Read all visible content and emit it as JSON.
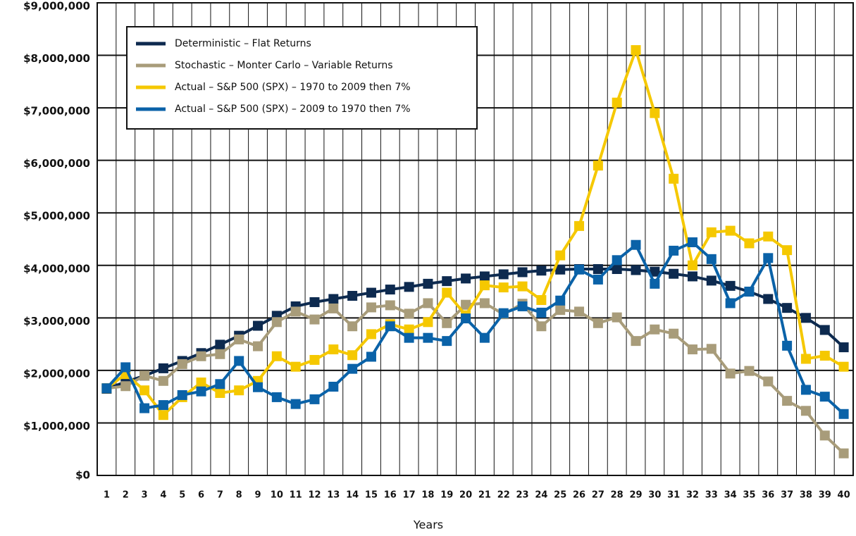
{
  "chart_data": {
    "type": "line",
    "x_label": "Years",
    "categories": [
      "1",
      "2",
      "3",
      "4",
      "5",
      "6",
      "7",
      "8",
      "9",
      "10",
      "11",
      "12",
      "13",
      "14",
      "15",
      "16",
      "17",
      "18",
      "19",
      "20",
      "21",
      "22",
      "23",
      "24",
      "25",
      "26",
      "27",
      "28",
      "29",
      "30",
      "31",
      "32",
      "33",
      "34",
      "35",
      "36",
      "37",
      "38",
      "39",
      "40"
    ],
    "series": [
      {
        "name": "Deterministic – Flat Returns",
        "color": "#0d2a4f",
        "values": [
          1650000,
          1780000,
          1900000,
          2040000,
          2180000,
          2330000,
          2490000,
          2660000,
          2850000,
          3040000,
          3220000,
          3300000,
          3360000,
          3420000,
          3480000,
          3540000,
          3590000,
          3650000,
          3700000,
          3750000,
          3790000,
          3830000,
          3870000,
          3900000,
          3920000,
          3930000,
          3930000,
          3930000,
          3910000,
          3880000,
          3840000,
          3790000,
          3710000,
          3610000,
          3500000,
          3360000,
          3190000,
          3000000,
          2770000,
          2440000
        ]
      },
      {
        "name": "Stochastic – Monter Carlo – Variable Returns",
        "color": "#a89c7a",
        "values": [
          1660000,
          1700000,
          1900000,
          1800000,
          2120000,
          2270000,
          2310000,
          2590000,
          2460000,
          2920000,
          3120000,
          2970000,
          3180000,
          2840000,
          3200000,
          3240000,
          3080000,
          3280000,
          2900000,
          3250000,
          3280000,
          3070000,
          3270000,
          2840000,
          3150000,
          3120000,
          2900000,
          3010000,
          2560000,
          2780000,
          2700000,
          2400000,
          2410000,
          1940000,
          1990000,
          1790000,
          1420000,
          1230000,
          760000,
          420000
        ]
      },
      {
        "name": "Actual – S&P 500 (SPX) – 1970 to 2009 then 7%",
        "color": "#f5c800",
        "values": [
          1660000,
          1930000,
          1620000,
          1150000,
          1490000,
          1770000,
          1570000,
          1620000,
          1800000,
          2270000,
          2070000,
          2200000,
          2400000,
          2290000,
          2690000,
          2880000,
          2780000,
          2920000,
          3480000,
          3050000,
          3620000,
          3580000,
          3600000,
          3340000,
          4190000,
          4750000,
          5900000,
          7100000,
          8100000,
          6900000,
          5650000,
          4000000,
          4630000,
          4660000,
          4420000,
          4550000,
          4290000,
          2220000,
          2280000,
          2070000
        ]
      },
      {
        "name": "Actual – S&P 500 (SPX) – 2009 to 1970 then 7%",
        "color": "#0a62a8",
        "values": [
          1660000,
          2060000,
          1280000,
          1340000,
          1530000,
          1600000,
          1740000,
          2180000,
          1680000,
          1490000,
          1360000,
          1450000,
          1690000,
          2030000,
          2260000,
          2840000,
          2620000,
          2620000,
          2560000,
          2990000,
          2620000,
          3090000,
          3220000,
          3100000,
          3330000,
          3920000,
          3730000,
          4100000,
          4390000,
          3650000,
          4280000,
          4440000,
          4120000,
          3280000,
          3500000,
          4140000,
          2470000,
          1630000,
          1500000,
          1170000
        ]
      }
    ],
    "ylim": [
      0,
      9000000
    ],
    "yticks": [
      {
        "value": 0,
        "label": "$0"
      },
      {
        "value": 1000000,
        "label": "$1,000,000"
      },
      {
        "value": 2000000,
        "label": "$2,000,000"
      },
      {
        "value": 3000000,
        "label": "$3,000,000"
      },
      {
        "value": 4000000,
        "label": "$4,000,000"
      },
      {
        "value": 5000000,
        "label": "$5,000,000"
      },
      {
        "value": 6000000,
        "label": "$6,000,000"
      },
      {
        "value": 7000000,
        "label": "$7,000,000"
      },
      {
        "value": 8000000,
        "label": "$8,000,000"
      },
      {
        "value": 9000000,
        "label": "$9,000,000"
      }
    ],
    "grid": true,
    "legend": "upper-left"
  }
}
